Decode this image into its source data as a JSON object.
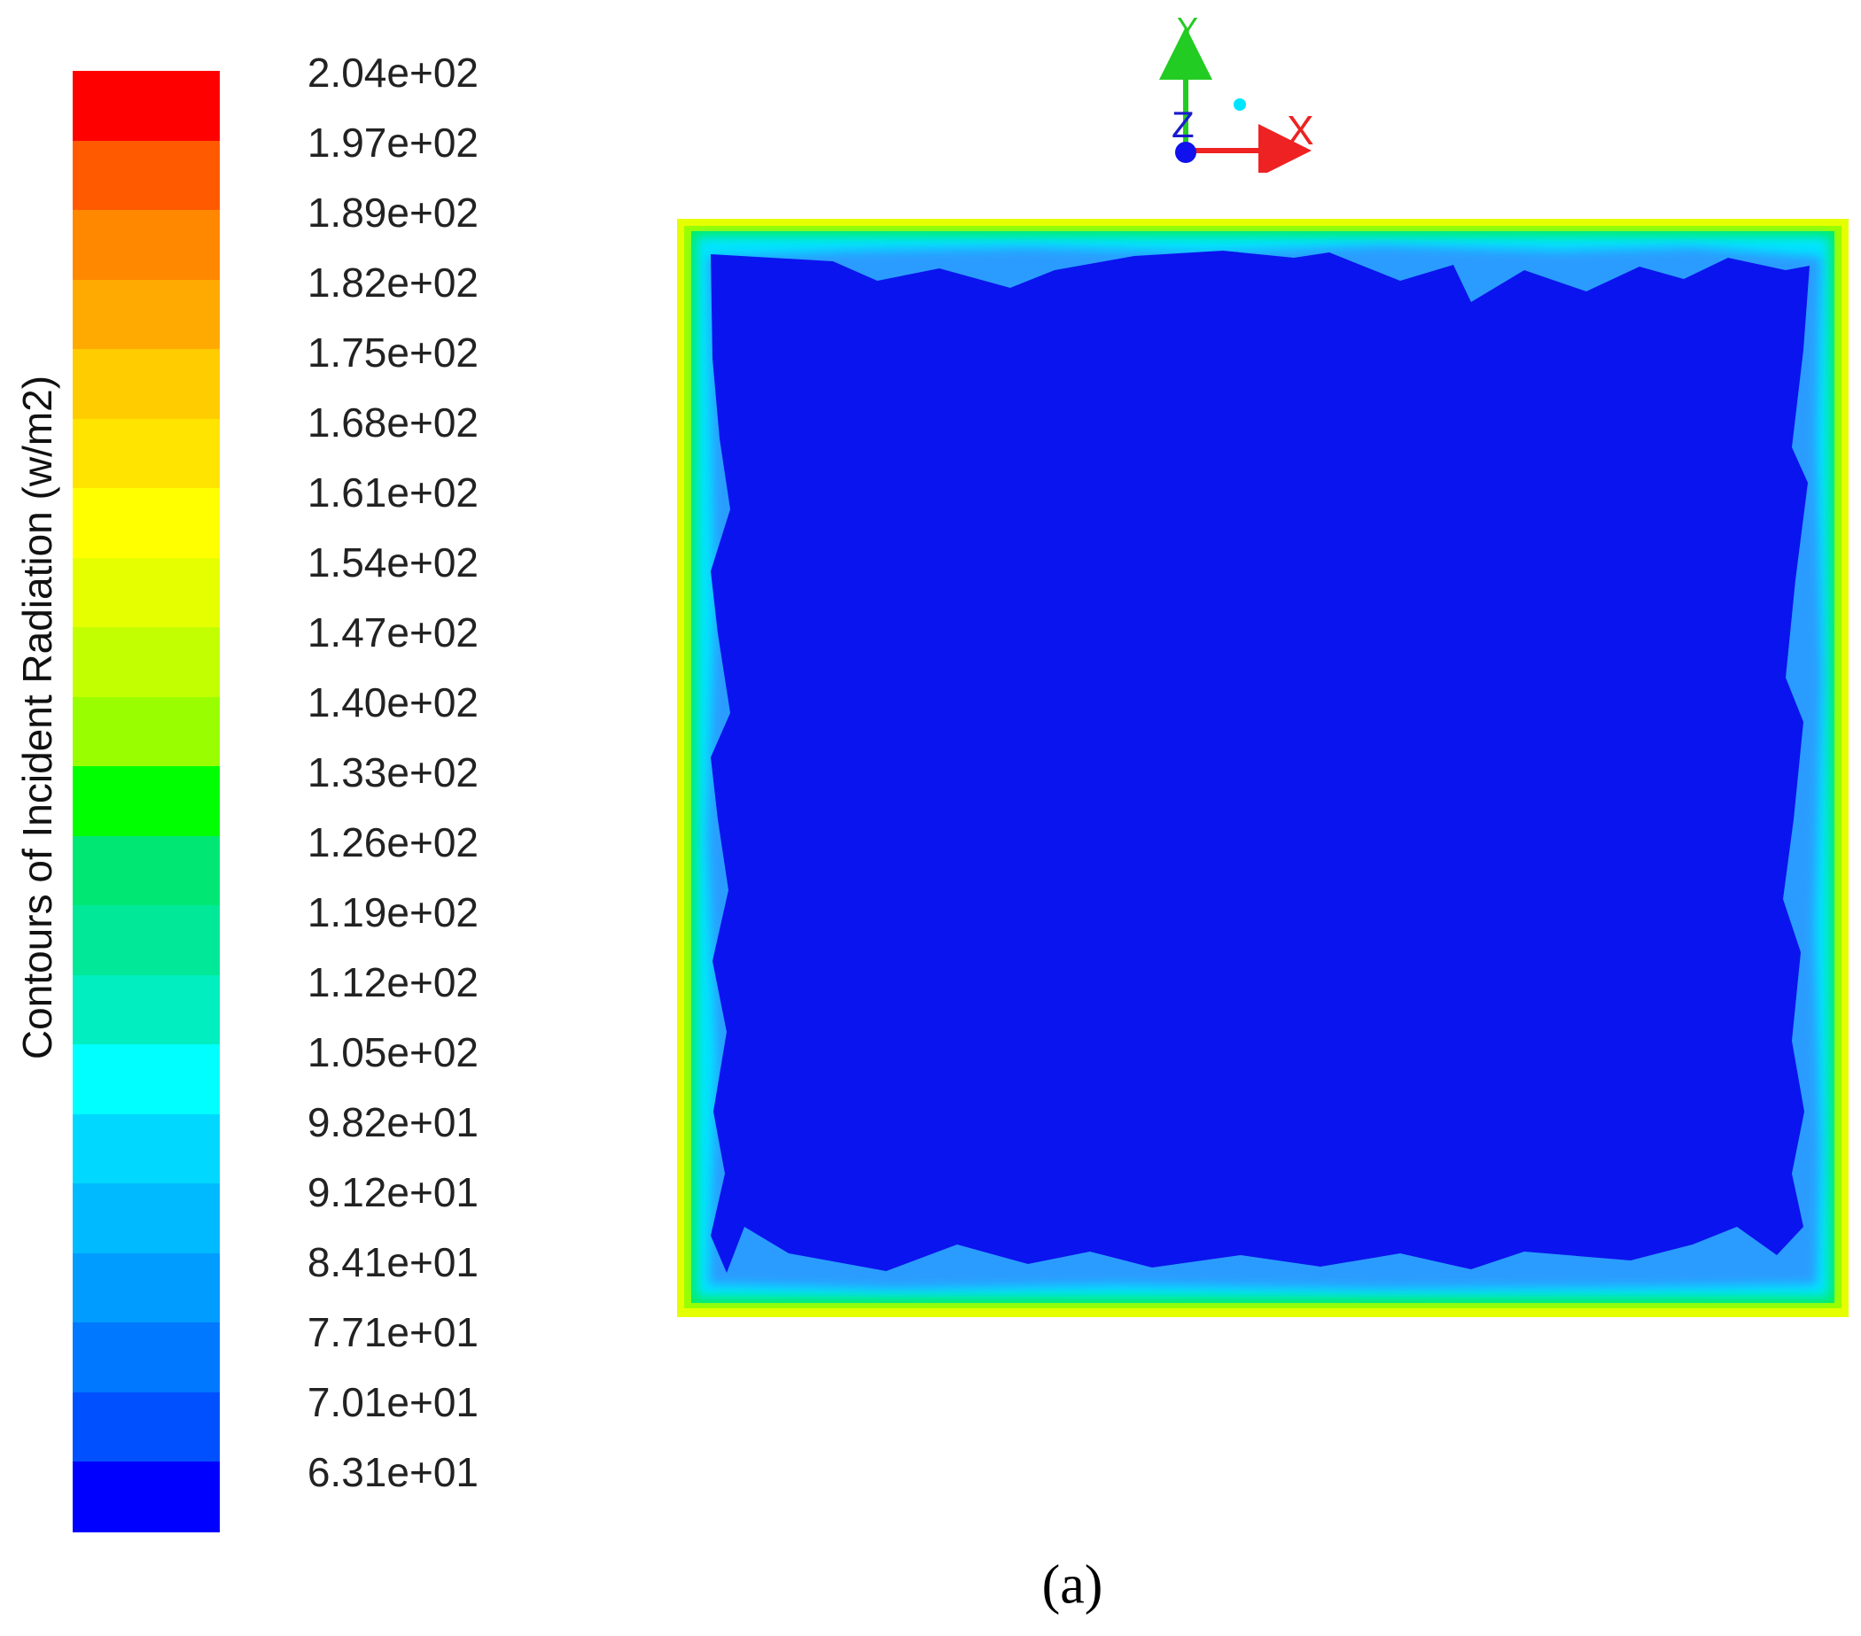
{
  "chart_data": {
    "type": "heatmap",
    "title": "",
    "legend_title": "Contours of Incident Radiation (w/m2)",
    "colorbar_levels": [
      "2.04e+02",
      "1.97e+02",
      "1.89e+02",
      "1.82e+02",
      "1.75e+02",
      "1.68e+02",
      "1.61e+02",
      "1.54e+02",
      "1.47e+02",
      "1.40e+02",
      "1.33e+02",
      "1.26e+02",
      "1.19e+02",
      "1.12e+02",
      "1.05e+02",
      "9.82e+01",
      "9.12e+01",
      "8.41e+01",
      "7.71e+01",
      "7.01e+01",
      "6.31e+01"
    ],
    "colorbar_colors": [
      "#ff0000",
      "#ff5a00",
      "#ff8800",
      "#ffaa00",
      "#ffcc00",
      "#ffe400",
      "#ffff00",
      "#e6ff00",
      "#c2ff00",
      "#99ff00",
      "#00ff00",
      "#00e873",
      "#00e898",
      "#00eec0",
      "#00ffff",
      "#00d8ff",
      "#00baff",
      "#009cff",
      "#0078ff",
      "#0050ff",
      "#0000ff"
    ],
    "field_summary": "interior ~6.31e+01 (blue); boundary rises through cyan and green to yellow at walls",
    "axes_labels": [
      "Y",
      "Z",
      "X"
    ]
  },
  "caption": "(a)"
}
